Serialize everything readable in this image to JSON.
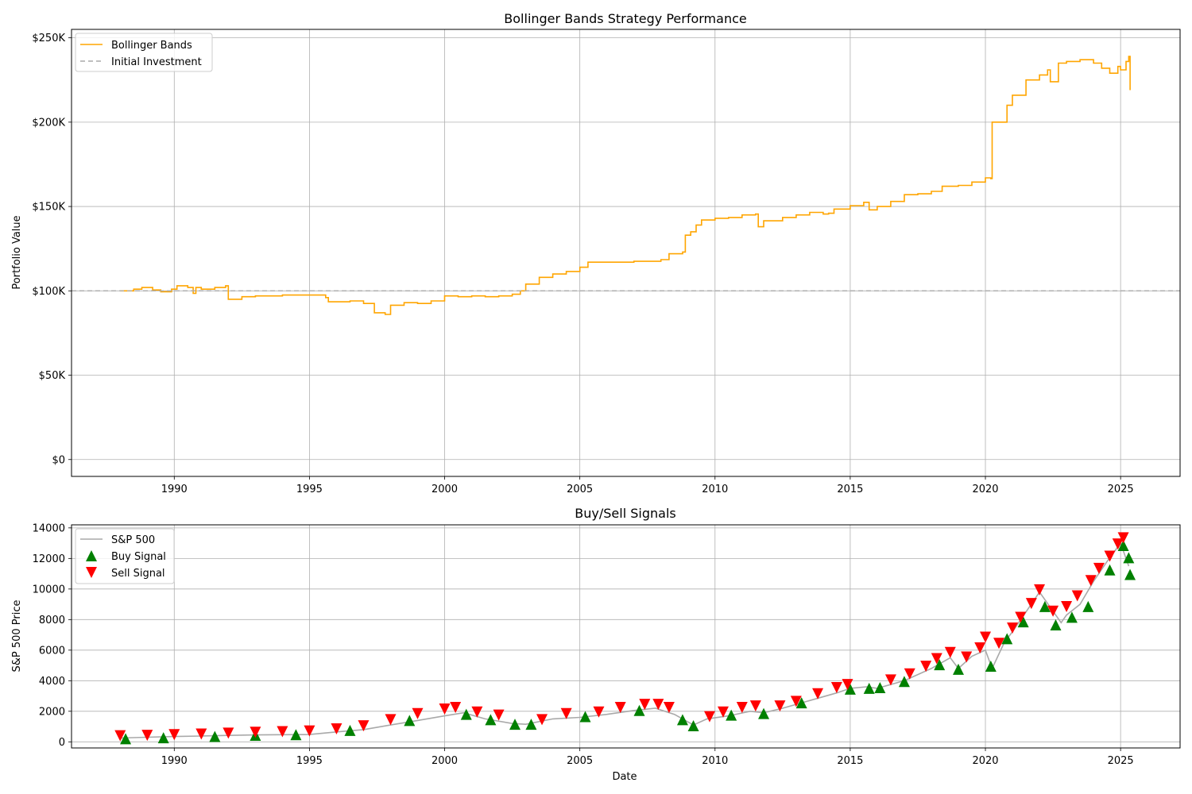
{
  "chart_data": [
    {
      "type": "line",
      "title": "Bollinger Bands Strategy Performance",
      "xlabel": "",
      "ylabel": "Portfolio Value",
      "xlim": [
        1986.2,
        2027.2
      ],
      "ylim": [
        -10000,
        255000
      ],
      "x_ticks": [
        "1990",
        "1995",
        "2000",
        "2005",
        "2010",
        "2015",
        "2020",
        "2025"
      ],
      "x_tick_values": [
        1990,
        1995,
        2000,
        2005,
        2010,
        2015,
        2020,
        2025
      ],
      "y_ticks": [
        "$0",
        "$50K",
        "$100K",
        "$150K",
        "$200K",
        "$250K"
      ],
      "y_tick_values": [
        0,
        50000,
        100000,
        150000,
        200000,
        250000
      ],
      "grid": true,
      "legend_position": "top-left",
      "series": [
        {
          "name": "Bollinger Bands",
          "color": "#ffa500",
          "style": "solid",
          "points": [
            [
              1988.0,
              100000
            ],
            [
              1988.5,
              101000
            ],
            [
              1988.8,
              102000
            ],
            [
              1989.2,
              100500
            ],
            [
              1989.5,
              99500
            ],
            [
              1989.9,
              101000
            ],
            [
              1990.1,
              103000
            ],
            [
              1990.5,
              102000
            ],
            [
              1990.7,
              98500
            ],
            [
              1990.8,
              102000
            ],
            [
              1991.0,
              101000
            ],
            [
              1991.5,
              102000
            ],
            [
              1991.9,
              103000
            ],
            [
              1992.0,
              95000
            ],
            [
              1992.5,
              96500
            ],
            [
              1993.0,
              97000
            ],
            [
              1994.0,
              97500
            ],
            [
              1995.0,
              97500
            ],
            [
              1995.6,
              96000
            ],
            [
              1995.7,
              93500
            ],
            [
              1996.5,
              94000
            ],
            [
              1997.0,
              92500
            ],
            [
              1997.4,
              87000
            ],
            [
              1997.8,
              86000
            ],
            [
              1998.0,
              91500
            ],
            [
              1998.5,
              93000
            ],
            [
              1999.0,
              92500
            ],
            [
              1999.5,
              94000
            ],
            [
              2000.0,
              97000
            ],
            [
              2000.5,
              96500
            ],
            [
              2001.0,
              97000
            ],
            [
              2001.5,
              96500
            ],
            [
              2002.0,
              97000
            ],
            [
              2002.5,
              98000
            ],
            [
              2002.8,
              100000
            ],
            [
              2003.0,
              104000
            ],
            [
              2003.5,
              108000
            ],
            [
              2004.0,
              110000
            ],
            [
              2004.5,
              111500
            ],
            [
              2005.0,
              114000
            ],
            [
              2005.3,
              117000
            ],
            [
              2006.0,
              117000
            ],
            [
              2007.0,
              117500
            ],
            [
              2008.0,
              118500
            ],
            [
              2008.3,
              122000
            ],
            [
              2008.8,
              123000
            ],
            [
              2008.9,
              133000
            ],
            [
              2009.1,
              135000
            ],
            [
              2009.3,
              139000
            ],
            [
              2009.5,
              142000
            ],
            [
              2010.0,
              143000
            ],
            [
              2010.5,
              143500
            ],
            [
              2011.0,
              145000
            ],
            [
              2011.5,
              145500
            ],
            [
              2011.6,
              138000
            ],
            [
              2011.8,
              141500
            ],
            [
              2012.5,
              143500
            ],
            [
              2013.0,
              145000
            ],
            [
              2013.5,
              146500
            ],
            [
              2014.0,
              145500
            ],
            [
              2014.2,
              146000
            ],
            [
              2014.4,
              148500
            ],
            [
              2015.0,
              150500
            ],
            [
              2015.5,
              152500
            ],
            [
              2015.7,
              148000
            ],
            [
              2016.0,
              150000
            ],
            [
              2016.5,
              153000
            ],
            [
              2017.0,
              157000
            ],
            [
              2017.5,
              157500
            ],
            [
              2018.0,
              159000
            ],
            [
              2018.4,
              162000
            ],
            [
              2019.0,
              162500
            ],
            [
              2019.5,
              164500
            ],
            [
              2020.0,
              167000
            ],
            [
              2020.2,
              166500
            ],
            [
              2020.25,
              200000
            ],
            [
              2020.6,
              200000
            ],
            [
              2020.8,
              210000
            ],
            [
              2021.0,
              216000
            ],
            [
              2021.5,
              225000
            ],
            [
              2022.0,
              228000
            ],
            [
              2022.3,
              231000
            ],
            [
              2022.4,
              224000
            ],
            [
              2022.7,
              235000
            ],
            [
              2023.0,
              236000
            ],
            [
              2023.5,
              237000
            ],
            [
              2024.0,
              235000
            ],
            [
              2024.3,
              232000
            ],
            [
              2024.6,
              229000
            ],
            [
              2024.9,
              233000
            ],
            [
              2025.0,
              231000
            ],
            [
              2025.2,
              236000
            ],
            [
              2025.3,
              239000
            ],
            [
              2025.35,
              219000
            ]
          ]
        },
        {
          "name": "Initial Investment",
          "color": "#aaaaaa",
          "style": "dashed",
          "y": 100000
        }
      ]
    },
    {
      "type": "line",
      "title": "Buy/Sell Signals",
      "xlabel": "Date",
      "ylabel": "S&P 500 Price",
      "xlim": [
        1986.2,
        2027.2
      ],
      "ylim": [
        -400,
        14200
      ],
      "x_ticks": [
        "1990",
        "1995",
        "2000",
        "2005",
        "2010",
        "2015",
        "2020",
        "2025"
      ],
      "x_tick_values": [
        1990,
        1995,
        2000,
        2005,
        2010,
        2015,
        2020,
        2025
      ],
      "y_ticks": [
        "0",
        "2000",
        "4000",
        "6000",
        "8000",
        "10000",
        "12000",
        "14000"
      ],
      "y_tick_values": [
        0,
        2000,
        4000,
        6000,
        8000,
        10000,
        12000,
        14000
      ],
      "grid": true,
      "legend_position": "top-left",
      "series": [
        {
          "name": "S&P 500",
          "color": "#a9a9a9",
          "points": [
            [
              1988.0,
              250
            ],
            [
              1989.0,
              300
            ],
            [
              1990.0,
              350
            ],
            [
              1991.0,
              380
            ],
            [
              1992.0,
              420
            ],
            [
              1993.0,
              450
            ],
            [
              1994.0,
              470
            ],
            [
              1995.0,
              480
            ],
            [
              1996.0,
              650
            ],
            [
              1997.0,
              800
            ],
            [
              1998.0,
              1100
            ],
            [
              1999.0,
              1400
            ],
            [
              2000.0,
              1700
            ],
            [
              2000.7,
              1900
            ],
            [
              2001.5,
              1500
            ],
            [
              2002.5,
              1200
            ],
            [
              2003.0,
              1150
            ],
            [
              2004.0,
              1500
            ],
            [
              2005.0,
              1600
            ],
            [
              2006.0,
              1800
            ],
            [
              2007.0,
              2050
            ],
            [
              2007.8,
              2200
            ],
            [
              2008.5,
              1800
            ],
            [
              2009.2,
              1100
            ],
            [
              2009.7,
              1500
            ],
            [
              2010.5,
              1700
            ],
            [
              2011.3,
              2000
            ],
            [
              2011.8,
              1900
            ],
            [
              2012.5,
              2200
            ],
            [
              2013.5,
              2700
            ],
            [
              2014.5,
              3200
            ],
            [
              2015.0,
              3500
            ],
            [
              2015.6,
              3600
            ],
            [
              2016.0,
              3500
            ],
            [
              2017.0,
              4000
            ],
            [
              2018.0,
              4800
            ],
            [
              2018.7,
              5500
            ],
            [
              2019.0,
              4800
            ],
            [
              2019.5,
              5600
            ],
            [
              2020.0,
              6000
            ],
            [
              2020.25,
              4800
            ],
            [
              2020.7,
              6500
            ],
            [
              2021.0,
              7200
            ],
            [
              2021.5,
              8500
            ],
            [
              2022.0,
              9800
            ],
            [
              2022.4,
              8800
            ],
            [
              2022.8,
              7800
            ],
            [
              2023.0,
              8300
            ],
            [
              2023.5,
              9000
            ],
            [
              2024.0,
              10500
            ],
            [
              2024.5,
              11800
            ],
            [
              2025.0,
              13000
            ],
            [
              2025.3,
              11500
            ]
          ]
        },
        {
          "name": "Buy Signal",
          "color": "#008000",
          "marker": "triangle-up",
          "points": [
            [
              1988.2,
              150
            ],
            [
              1989.6,
              220
            ],
            [
              1991.5,
              300
            ],
            [
              1993.0,
              380
            ],
            [
              1994.5,
              420
            ],
            [
              1996.5,
              700
            ],
            [
              1998.7,
              1350
            ],
            [
              2000.8,
              1750
            ],
            [
              2001.7,
              1400
            ],
            [
              2002.6,
              1100
            ],
            [
              2003.2,
              1100
            ],
            [
              2005.2,
              1600
            ],
            [
              2007.2,
              2000
            ],
            [
              2008.8,
              1400
            ],
            [
              2009.2,
              1000
            ],
            [
              2010.6,
              1700
            ],
            [
              2011.8,
              1800
            ],
            [
              2013.2,
              2500
            ],
            [
              2015.0,
              3400
            ],
            [
              2015.7,
              3450
            ],
            [
              2016.1,
              3500
            ],
            [
              2017.0,
              3900
            ],
            [
              2018.3,
              5000
            ],
            [
              2019.0,
              4700
            ],
            [
              2020.2,
              4900
            ],
            [
              2020.8,
              6700
            ],
            [
              2021.4,
              7800
            ],
            [
              2022.2,
              8800
            ],
            [
              2022.6,
              7600
            ],
            [
              2023.2,
              8100
            ],
            [
              2023.8,
              8800
            ],
            [
              2024.6,
              11200
            ],
            [
              2025.1,
              12800
            ],
            [
              2025.3,
              12000
            ],
            [
              2025.35,
              10900
            ]
          ]
        },
        {
          "name": "Sell Signal",
          "color": "#ff0000",
          "marker": "triangle-down",
          "points": [
            [
              1988.0,
              450
            ],
            [
              1989.0,
              480
            ],
            [
              1990.0,
              520
            ],
            [
              1991.0,
              560
            ],
            [
              1992.0,
              620
            ],
            [
              1993.0,
              680
            ],
            [
              1994.0,
              720
            ],
            [
              1995.0,
              760
            ],
            [
              1996.0,
              900
            ],
            [
              1997.0,
              1100
            ],
            [
              1998.0,
              1500
            ],
            [
              1999.0,
              1900
            ],
            [
              2000.0,
              2200
            ],
            [
              2000.4,
              2300
            ],
            [
              2001.2,
              2000
            ],
            [
              2002.0,
              1800
            ],
            [
              2003.6,
              1500
            ],
            [
              2004.5,
              1900
            ],
            [
              2005.7,
              2000
            ],
            [
              2006.5,
              2300
            ],
            [
              2007.4,
              2500
            ],
            [
              2007.9,
              2500
            ],
            [
              2008.3,
              2300
            ],
            [
              2009.8,
              1700
            ],
            [
              2010.3,
              2000
            ],
            [
              2011.0,
              2300
            ],
            [
              2011.5,
              2400
            ],
            [
              2012.4,
              2400
            ],
            [
              2013.0,
              2700
            ],
            [
              2013.8,
              3200
            ],
            [
              2014.5,
              3600
            ],
            [
              2014.9,
              3800
            ],
            [
              2016.5,
              4100
            ],
            [
              2017.2,
              4500
            ],
            [
              2017.8,
              5000
            ],
            [
              2018.2,
              5500
            ],
            [
              2018.7,
              5900
            ],
            [
              2019.3,
              5600
            ],
            [
              2019.8,
              6200
            ],
            [
              2020.0,
              6900
            ],
            [
              2020.5,
              6500
            ],
            [
              2021.0,
              7500
            ],
            [
              2021.3,
              8200
            ],
            [
              2021.7,
              9100
            ],
            [
              2022.0,
              10000
            ],
            [
              2022.5,
              8600
            ],
            [
              2023.0,
              8900
            ],
            [
              2023.4,
              9600
            ],
            [
              2023.9,
              10600
            ],
            [
              2024.2,
              11400
            ],
            [
              2024.6,
              12200
            ],
            [
              2024.9,
              13000
            ],
            [
              2025.1,
              13400
            ]
          ]
        }
      ]
    }
  ]
}
